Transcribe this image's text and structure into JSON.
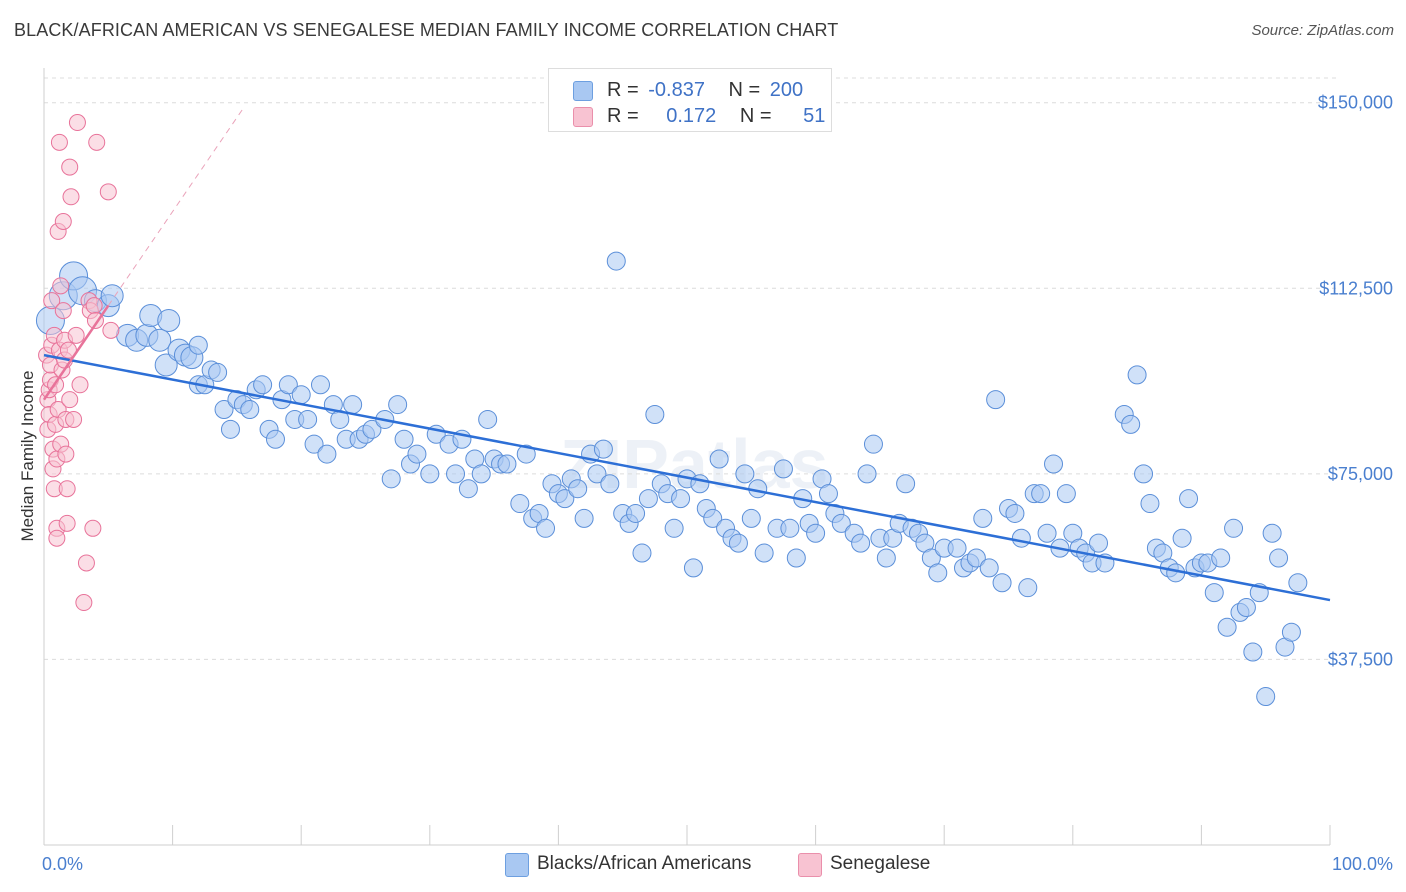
{
  "title": "BLACK/AFRICAN AMERICAN VS SENEGALESE MEDIAN FAMILY INCOME CORRELATION CHART",
  "source": "Source: ZipAtlas.com",
  "watermark": "ZIPatlas",
  "legend": {
    "rows": [
      {
        "r_label": "R =",
        "r_value": "-0.837",
        "n_label": "N =",
        "n_value": "200",
        "color": "#a9c8f2",
        "border": "#6d9fe0"
      },
      {
        "r_label": "R =",
        "r_value": "0.172",
        "n_label": "N =",
        "n_value": "51",
        "color": "#f8c3d2",
        "border": "#ea8fab"
      }
    ]
  },
  "bottom_legend": [
    {
      "label": "Blacks/African Americans",
      "color": "#a9c8f2",
      "border": "#6d9fe0"
    },
    {
      "label": "Senegalese",
      "color": "#f8c3d2",
      "border": "#ea8fab"
    }
  ],
  "chart_data": {
    "type": "scatter",
    "title": "BLACK/AFRICAN AMERICAN VS SENEGALESE MEDIAN FAMILY INCOME CORRELATION CHART",
    "xlabel": "",
    "ylabel": "Median Family Income",
    "xlim": [
      0,
      100
    ],
    "ylim": [
      0,
      155000
    ],
    "x_tick_labels": [
      "0.0%",
      "100.0%"
    ],
    "y_ticks": [
      37500,
      75000,
      112500,
      150000
    ],
    "y_tick_labels": [
      "$37,500",
      "$75,000",
      "$112,500",
      "$150,000"
    ],
    "grid": "horizontal dashed",
    "colors": {
      "blue": "#5b8fd9",
      "blue_fill": "#a9c8f2",
      "pink": "#e8739a",
      "pink_fill": "#f8c3d2",
      "axis_text": "#4a7fcf"
    },
    "series": [
      {
        "name": "Blacks/African Americans",
        "trend": {
          "x": [
            0,
            100
          ],
          "y": [
            99000,
            49500
          ]
        },
        "points": [
          [
            0.5,
            106000
          ],
          [
            1.5,
            111000
          ],
          [
            2.3,
            115000
          ],
          [
            3,
            112000
          ],
          [
            4,
            110000
          ],
          [
            5,
            109000
          ],
          [
            5.3,
            111000
          ],
          [
            6.5,
            103000
          ],
          [
            7.2,
            102000
          ],
          [
            8,
            103000
          ],
          [
            8.3,
            107000
          ],
          [
            9,
            102000
          ],
          [
            9.5,
            97000
          ],
          [
            9.7,
            106000
          ],
          [
            10.5,
            100000
          ],
          [
            11,
            99000
          ],
          [
            11.5,
            98500
          ],
          [
            12,
            101000
          ],
          [
            12,
            93000
          ],
          [
            12.5,
            93000
          ],
          [
            13,
            96000
          ],
          [
            13.5,
            95500
          ],
          [
            14,
            88000
          ],
          [
            14.5,
            84000
          ],
          [
            15,
            90000
          ],
          [
            15.5,
            89000
          ],
          [
            16,
            88000
          ],
          [
            16.5,
            92000
          ],
          [
            17,
            93000
          ],
          [
            17.5,
            84000
          ],
          [
            18,
            82000
          ],
          [
            18.5,
            90000
          ],
          [
            19,
            93000
          ],
          [
            19.5,
            86000
          ],
          [
            20,
            91000
          ],
          [
            20.5,
            86000
          ],
          [
            21,
            81000
          ],
          [
            21.5,
            93000
          ],
          [
            22,
            79000
          ],
          [
            22.5,
            89000
          ],
          [
            23,
            86000
          ],
          [
            23.5,
            82000
          ],
          [
            24,
            89000
          ],
          [
            24.5,
            82000
          ],
          [
            25,
            83000
          ],
          [
            25.5,
            84000
          ],
          [
            26.5,
            86000
          ],
          [
            27,
            74000
          ],
          [
            27.5,
            89000
          ],
          [
            28,
            82000
          ],
          [
            28.5,
            77000
          ],
          [
            29,
            79000
          ],
          [
            30,
            75000
          ],
          [
            30.5,
            83000
          ],
          [
            31.5,
            81000
          ],
          [
            32,
            75000
          ],
          [
            32.5,
            82000
          ],
          [
            33,
            72000
          ],
          [
            33.5,
            78000
          ],
          [
            34,
            75000
          ],
          [
            34.5,
            86000
          ],
          [
            35,
            78000
          ],
          [
            35.5,
            77000
          ],
          [
            36,
            77000
          ],
          [
            37,
            69000
          ],
          [
            37.5,
            79000
          ],
          [
            38,
            66000
          ],
          [
            38.5,
            67000
          ],
          [
            39,
            64000
          ],
          [
            39.5,
            73000
          ],
          [
            40,
            71000
          ],
          [
            40.5,
            70000
          ],
          [
            41,
            74000
          ],
          [
            41.5,
            72000
          ],
          [
            42,
            66000
          ],
          [
            42.5,
            79000
          ],
          [
            43,
            75000
          ],
          [
            43.5,
            80000
          ],
          [
            44,
            73000
          ],
          [
            44.5,
            118000
          ],
          [
            45,
            67000
          ],
          [
            45.5,
            65000
          ],
          [
            46,
            67000
          ],
          [
            46.5,
            59000
          ],
          [
            47,
            70000
          ],
          [
            47.5,
            87000
          ],
          [
            48,
            73000
          ],
          [
            48.5,
            71000
          ],
          [
            49,
            64000
          ],
          [
            49.5,
            70000
          ],
          [
            50,
            74000
          ],
          [
            50.5,
            56000
          ],
          [
            51,
            73000
          ],
          [
            51.5,
            68000
          ],
          [
            52,
            66000
          ],
          [
            52.5,
            78000
          ],
          [
            53,
            64000
          ],
          [
            53.5,
            62000
          ],
          [
            54,
            61000
          ],
          [
            54.5,
            75000
          ],
          [
            55,
            66000
          ],
          [
            55.5,
            72000
          ],
          [
            56,
            59000
          ],
          [
            57,
            64000
          ],
          [
            57.5,
            76000
          ],
          [
            58,
            64000
          ],
          [
            58.5,
            58000
          ],
          [
            59,
            70000
          ],
          [
            59.5,
            65000
          ],
          [
            60,
            63000
          ],
          [
            60.5,
            74000
          ],
          [
            61,
            71000
          ],
          [
            61.5,
            67000
          ],
          [
            62,
            65000
          ],
          [
            63,
            63000
          ],
          [
            63.5,
            61000
          ],
          [
            64,
            75000
          ],
          [
            64.5,
            81000
          ],
          [
            65,
            62000
          ],
          [
            65.5,
            58000
          ],
          [
            66,
            62000
          ],
          [
            66.5,
            65000
          ],
          [
            67,
            73000
          ],
          [
            67.5,
            64000
          ],
          [
            68,
            63000
          ],
          [
            68.5,
            61000
          ],
          [
            69,
            58000
          ],
          [
            69.5,
            55000
          ],
          [
            70,
            60000
          ],
          [
            71,
            60000
          ],
          [
            71.5,
            56000
          ],
          [
            72,
            57000
          ],
          [
            72.5,
            58000
          ],
          [
            73,
            66000
          ],
          [
            73.5,
            56000
          ],
          [
            74,
            90000
          ],
          [
            74.5,
            53000
          ],
          [
            75,
            68000
          ],
          [
            75.5,
            67000
          ],
          [
            76,
            62000
          ],
          [
            76.5,
            52000
          ],
          [
            77,
            71000
          ],
          [
            77.5,
            71000
          ],
          [
            78,
            63000
          ],
          [
            78.5,
            77000
          ],
          [
            79,
            60000
          ],
          [
            79.5,
            71000
          ],
          [
            80,
            63000
          ],
          [
            80.5,
            60000
          ],
          [
            81,
            59000
          ],
          [
            81.5,
            57000
          ],
          [
            82,
            61000
          ],
          [
            82.5,
            57000
          ],
          [
            84,
            87000
          ],
          [
            84.5,
            85000
          ],
          [
            85,
            95000
          ],
          [
            85.5,
            75000
          ],
          [
            86,
            69000
          ],
          [
            86.5,
            60000
          ],
          [
            87,
            59000
          ],
          [
            87.5,
            56000
          ],
          [
            88,
            55000
          ],
          [
            88.5,
            62000
          ],
          [
            89,
            70000
          ],
          [
            89.5,
            56000
          ],
          [
            90,
            57000
          ],
          [
            90.5,
            57000
          ],
          [
            91,
            51000
          ],
          [
            91.5,
            58000
          ],
          [
            92,
            44000
          ],
          [
            92.5,
            64000
          ],
          [
            93,
            47000
          ],
          [
            93.5,
            48000
          ],
          [
            94,
            39000
          ],
          [
            94.5,
            51000
          ],
          [
            95,
            30000
          ],
          [
            95.5,
            63000
          ],
          [
            96,
            58000
          ],
          [
            96.5,
            40000
          ],
          [
            97,
            43000
          ],
          [
            97.5,
            53000
          ]
        ]
      },
      {
        "name": "Senegalese",
        "trend": {
          "x": [
            0,
            5
          ],
          "y": [
            90000,
            109000
          ]
        },
        "points": [
          [
            0.2,
            99000
          ],
          [
            0.3,
            90000
          ],
          [
            0.3,
            84000
          ],
          [
            0.4,
            92000
          ],
          [
            0.4,
            87000
          ],
          [
            0.5,
            94000
          ],
          [
            0.5,
            97000
          ],
          [
            0.6,
            101000
          ],
          [
            0.6,
            110000
          ],
          [
            0.7,
            80000
          ],
          [
            0.7,
            76000
          ],
          [
            0.8,
            72000
          ],
          [
            0.8,
            103000
          ],
          [
            0.9,
            93000
          ],
          [
            0.9,
            85000
          ],
          [
            1,
            78000
          ],
          [
            1,
            64000
          ],
          [
            1,
            62000
          ],
          [
            1.1,
            88000
          ],
          [
            1.1,
            124000
          ],
          [
            1.2,
            142000
          ],
          [
            1.2,
            100000
          ],
          [
            1.3,
            113000
          ],
          [
            1.3,
            81000
          ],
          [
            1.4,
            96000
          ],
          [
            1.5,
            126000
          ],
          [
            1.5,
            108000
          ],
          [
            1.6,
            102000
          ],
          [
            1.6,
            98000
          ],
          [
            1.7,
            86000
          ],
          [
            1.7,
            79000
          ],
          [
            1.8,
            72000
          ],
          [
            1.8,
            65000
          ],
          [
            1.9,
            100000
          ],
          [
            2,
            90000
          ],
          [
            2,
            137000
          ],
          [
            2.1,
            131000
          ],
          [
            2.3,
            86000
          ],
          [
            2.5,
            103000
          ],
          [
            2.6,
            146000
          ],
          [
            2.8,
            93000
          ],
          [
            3.1,
            49000
          ],
          [
            3.3,
            57000
          ],
          [
            3.5,
            110000
          ],
          [
            3.6,
            108000
          ],
          [
            3.8,
            64000
          ],
          [
            3.9,
            109000
          ],
          [
            4,
            106000
          ],
          [
            4.1,
            142000
          ],
          [
            5,
            132000
          ],
          [
            5.2,
            104000
          ]
        ]
      }
    ]
  }
}
